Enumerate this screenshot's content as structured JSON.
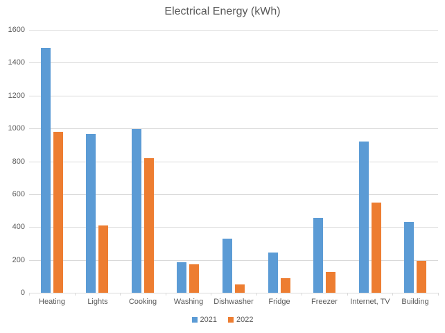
{
  "chart_data": {
    "type": "bar",
    "title": "Electrical Energy (kWh)",
    "categories": [
      "Heating",
      "Lights",
      "Cooking",
      "Washing",
      "Dishwasher",
      "Fridge",
      "Freezer",
      "Internet, TV",
      "Building"
    ],
    "series": [
      {
        "name": "2021",
        "color": "#5B9BD5",
        "values": [
          1490,
          965,
          995,
          185,
          330,
          245,
          455,
          920,
          430
        ]
      },
      {
        "name": "2022",
        "color": "#ED7D31",
        "values": [
          980,
          410,
          820,
          175,
          50,
          90,
          125,
          550,
          195
        ]
      }
    ],
    "xlabel": "",
    "ylabel": "",
    "ylim": [
      0,
      1600
    ],
    "ytick_step": 200,
    "grid": true,
    "legend_position": "bottom",
    "gridline_color": "#D9D9D9",
    "text_color": "#595959",
    "background_color": "#FFFFFF"
  }
}
